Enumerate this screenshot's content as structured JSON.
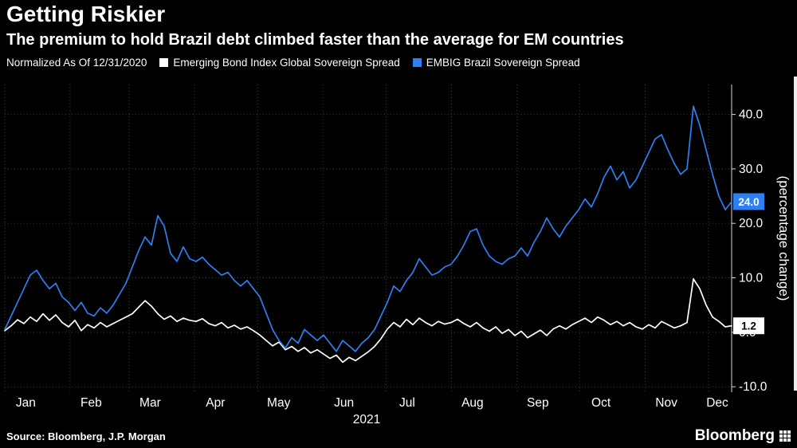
{
  "header": {
    "title": "Getting Riskier",
    "subtitle": "The premium to hold Brazil debt climbed faster than the average for EM countries"
  },
  "legend": {
    "note": "Normalized As Of 12/31/2020",
    "items": [
      {
        "label": "Emerging Bond Index Global Sovereign Spread",
        "color": "#ffffff"
      },
      {
        "label": "EMBIG Brazil Sovereign Spread",
        "color": "#2e7ff2"
      }
    ]
  },
  "chart_data": {
    "type": "line",
    "title": "Getting Riskier",
    "xlabel": "2021",
    "ylabel": "(percentage change)",
    "x_tick_labels": [
      "Jan",
      "Feb",
      "Mar",
      "Apr",
      "May",
      "Jun",
      "Jul",
      "Aug",
      "Sep",
      "Oct",
      "Nov",
      "Dec"
    ],
    "x_axis_year": "2021",
    "ylim": [
      -11,
      45.5
    ],
    "yticks": [
      40,
      30,
      20,
      10,
      0,
      -10
    ],
    "ytick_labels": [
      "40.0",
      "30.0",
      "20.0",
      "10.0",
      "0.0",
      "-10.0"
    ],
    "grid": "dotted",
    "legend_position": "top",
    "colors": {
      "background": "#000000",
      "text": "#ffffff",
      "gridline": "#3d3d3d",
      "axis": "#d9d9d9"
    },
    "series": [
      {
        "name": "Emerging Bond Index Global Sovereign Spread",
        "color": "#ffffff",
        "badge_text_color": "#000000",
        "last_value_label": "1.2",
        "values": [
          0.3,
          1.2,
          2.3,
          1.6,
          2.8,
          2,
          3.4,
          2.2,
          3.2,
          1.8,
          1,
          2.2,
          0.3,
          1.4,
          0.8,
          1.8,
          1,
          1.6,
          2.2,
          2.8,
          3.4,
          4.6,
          5.8,
          4.8,
          3.4,
          2.4,
          3,
          2,
          2.6,
          2.2,
          2,
          2.5,
          1.6,
          1.2,
          1.8,
          0.8,
          1.3,
          0.6,
          1,
          0.3,
          -0.5,
          -1.5,
          -2.5,
          -1.8,
          -3.2,
          -2.6,
          -3.5,
          -2.8,
          -3.8,
          -3.2,
          -4,
          -4.8,
          -4.2,
          -5.5,
          -4.6,
          -5.2,
          -4.4,
          -3.6,
          -2.6,
          -1.2,
          0.6,
          1.8,
          1,
          2.4,
          1.4,
          2.6,
          1.8,
          1.2,
          2,
          1.5,
          1.8,
          2.4,
          1.6,
          1,
          1.8,
          0.8,
          0.2,
          1,
          -0.2,
          0.5,
          -0.6,
          0.2,
          -1,
          -0.3,
          0.4,
          -0.6,
          0.6,
          1.2,
          0.6,
          1.4,
          2,
          2.6,
          1.8,
          2.8,
          2.2,
          1.4,
          2,
          1.2,
          1.8,
          1,
          0.6,
          1.4,
          0.8,
          2,
          1.4,
          0.8,
          1.2,
          1.8,
          9.8,
          8,
          5,
          2.8,
          2,
          1,
          1.2
        ]
      },
      {
        "name": "EMBIG Brazil Sovereign Spread",
        "color": "#2e7ff2",
        "badge_text_color": "#ffffff",
        "last_value_label": "24.0",
        "values": [
          0.5,
          3,
          5.5,
          8,
          10.5,
          11.4,
          9.5,
          8,
          9,
          6.5,
          5.5,
          4,
          5.5,
          3.5,
          3,
          4.5,
          3.5,
          5,
          7,
          9,
          12,
          15,
          17.5,
          16,
          21.4,
          19.5,
          14.5,
          13,
          15.7,
          13.5,
          13,
          13.8,
          12.5,
          11.5,
          10.5,
          11,
          9.5,
          8.5,
          9.5,
          8,
          6.5,
          3.5,
          0.5,
          -1.5,
          -2.9,
          -1,
          -2,
          0.5,
          -0.5,
          -1.5,
          -0.5,
          -2,
          -3.5,
          -1.5,
          -2.5,
          -3.5,
          -2,
          -1,
          0.5,
          3,
          5.5,
          8.5,
          7.5,
          9.5,
          11,
          13.5,
          12,
          10.5,
          11,
          12,
          12.5,
          14,
          16,
          18.5,
          19,
          16,
          14,
          13,
          12.5,
          13.5,
          14,
          15.5,
          14,
          16.5,
          18.5,
          21,
          19,
          17.5,
          19.5,
          21,
          22.5,
          24.5,
          23,
          25.5,
          28.5,
          30.5,
          28,
          29.5,
          26.5,
          28,
          30.5,
          33,
          35.5,
          36.3,
          33.5,
          31,
          29,
          30,
          41.5,
          38,
          33.5,
          29,
          25,
          22.5,
          24
        ]
      }
    ]
  },
  "footer": {
    "source": "Source: Bloomberg, J.P. Morgan",
    "logo": "Bloomberg"
  }
}
